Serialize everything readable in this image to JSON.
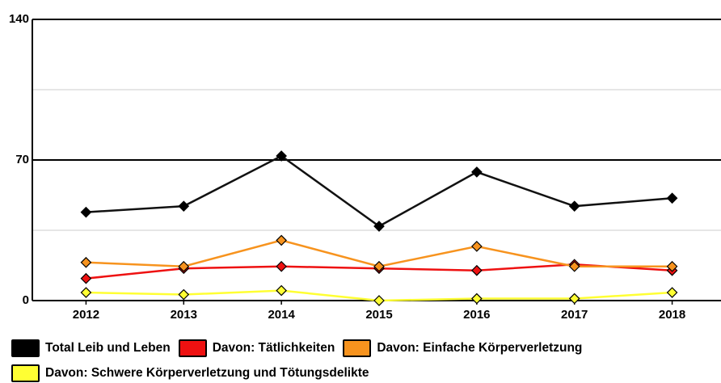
{
  "chart_data": {
    "type": "line",
    "categories": [
      "2012",
      "2013",
      "2014",
      "2015",
      "2016",
      "2017",
      "2018"
    ],
    "series": [
      {
        "name": "Total Leib und Leben",
        "color": "#000000",
        "values": [
          44,
          47,
          72,
          37,
          64,
          47,
          51
        ]
      },
      {
        "name": "Davon: Tätlichkeiten",
        "color": "#ee1111",
        "values": [
          11,
          16,
          17,
          16,
          15,
          18,
          15
        ]
      },
      {
        "name": "Davon: Einfache Körperverletzung",
        "color": "#f7931e",
        "values": [
          19,
          17,
          30,
          17,
          27,
          17,
          17
        ]
      },
      {
        "name": "Davon: Schwere Körperverletzung und Tötungsdelikte",
        "color": "#ffff33",
        "values": [
          4,
          3,
          5,
          0,
          1,
          1,
          4
        ]
      }
    ],
    "ylim": [
      0,
      140
    ],
    "yticks": [
      0,
      70,
      140
    ],
    "grid": true,
    "legend": "bottom"
  }
}
